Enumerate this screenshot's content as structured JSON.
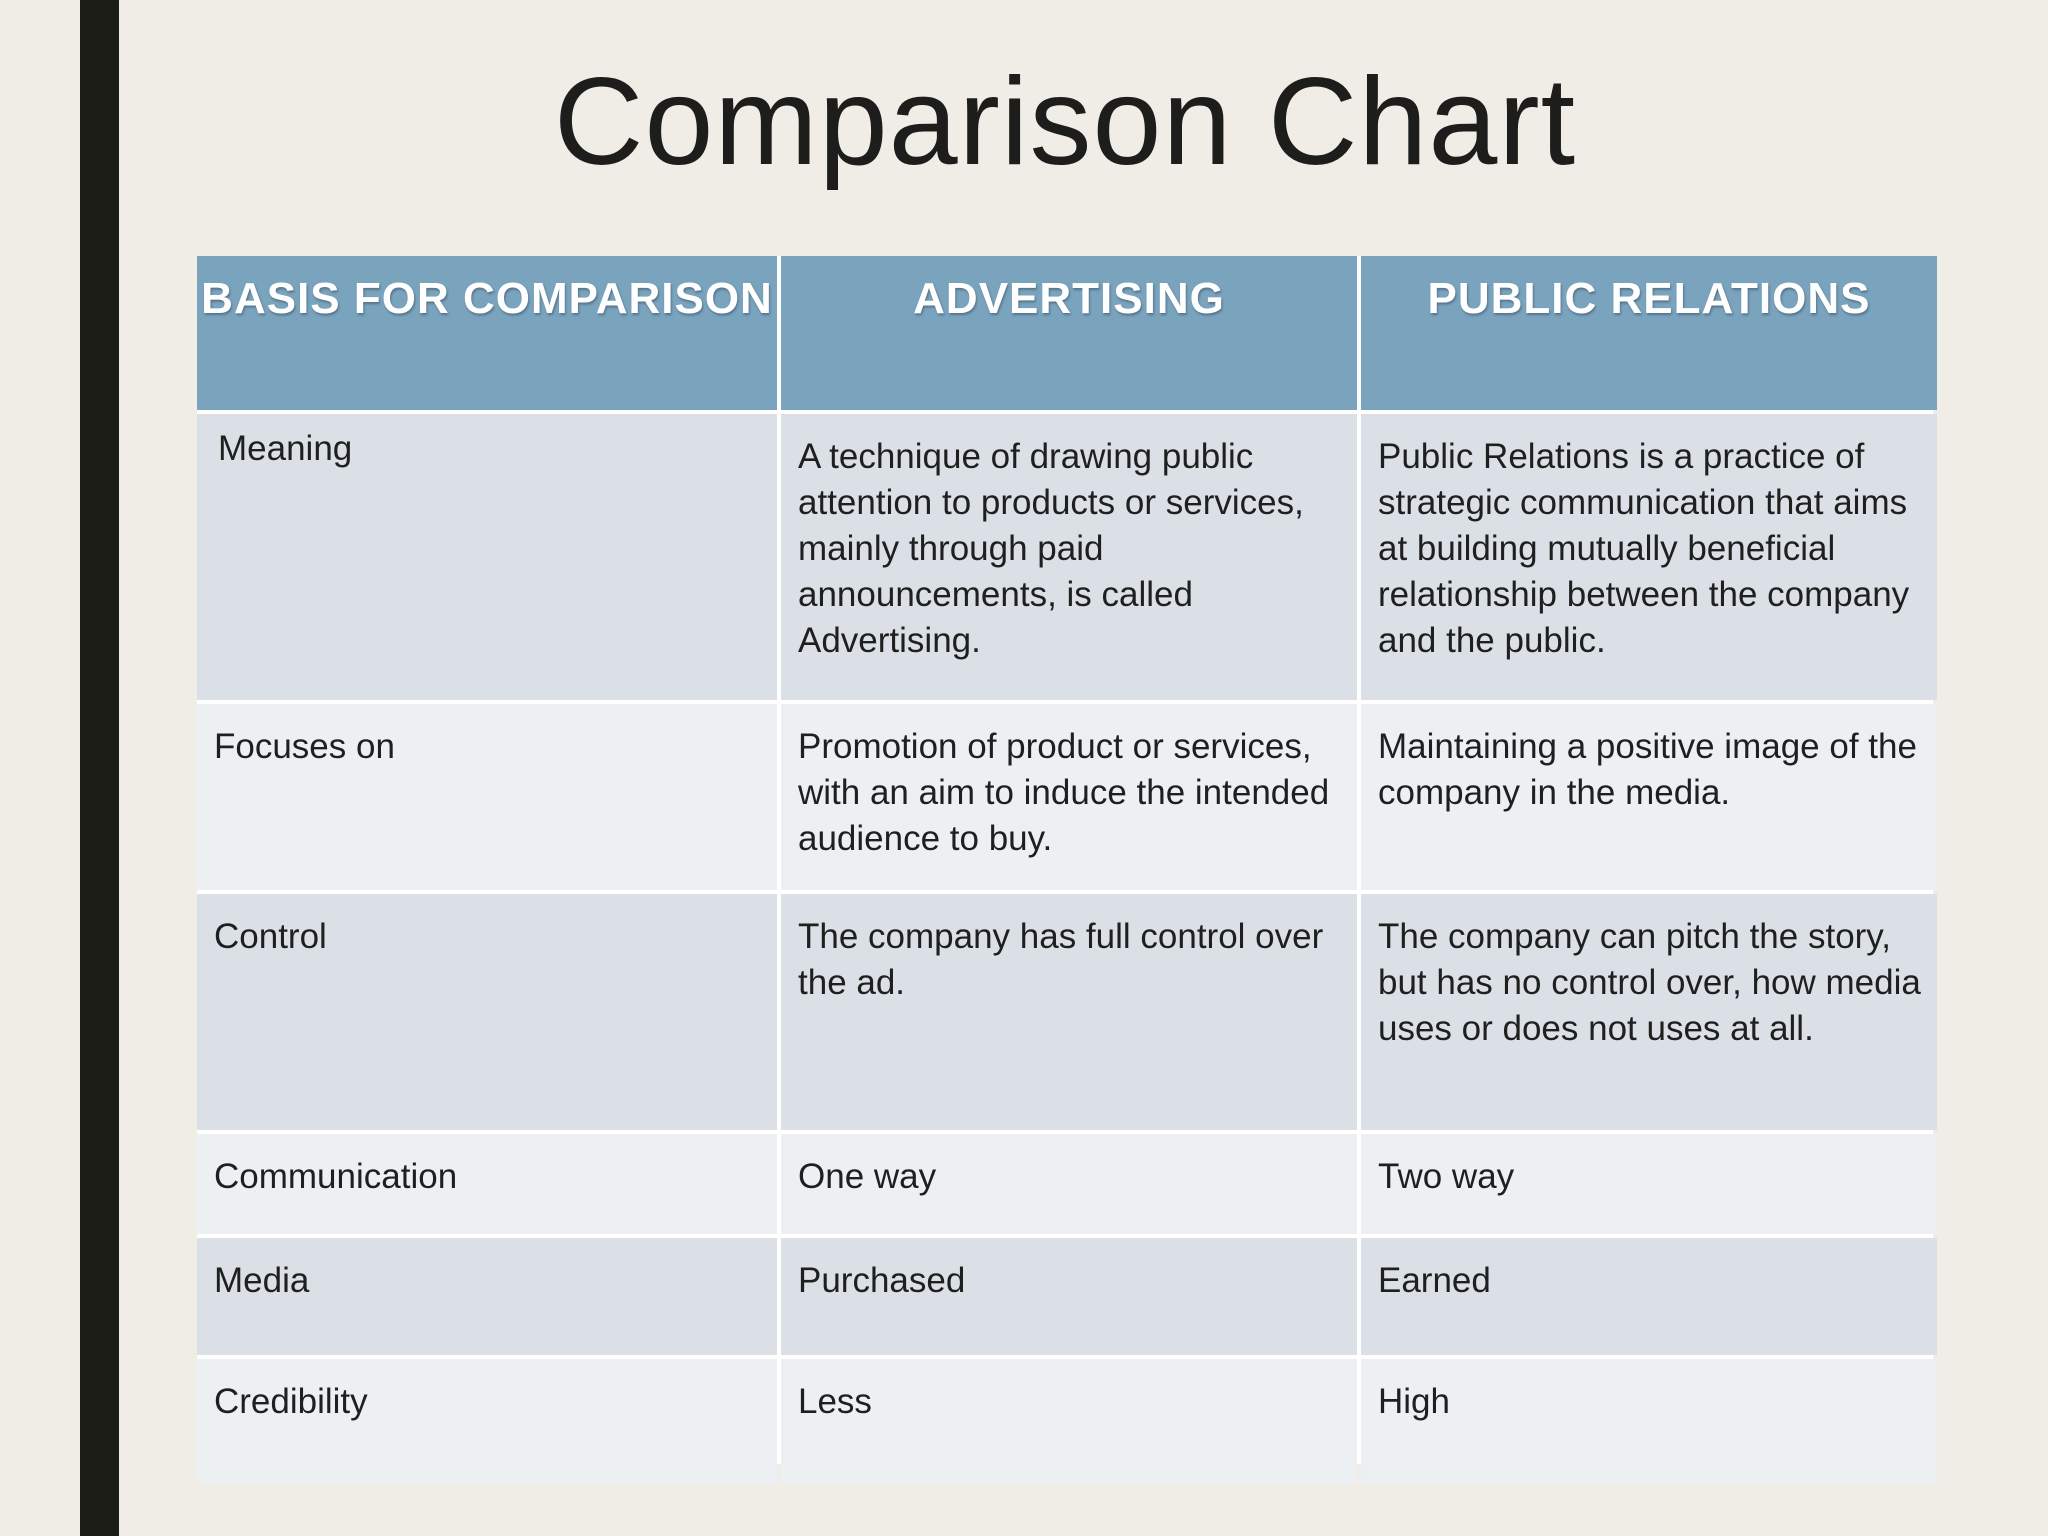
{
  "slide": {
    "title": "Comparison Chart"
  },
  "table": {
    "headers": [
      "BASIS FOR COMPARISON",
      "ADVERTISING",
      "PUBLIC RELATIONS"
    ],
    "rows": [
      [
        "Meaning",
        "A technique of drawing public attention to products or services, mainly through paid announcements, is called Advertising.",
        "Public Relations is a practice of strategic communication that aims at building mutually beneficial relationship between the company and the public."
      ],
      [
        "Focuses on",
        "Promotion of product or services, with an aim to induce the intended audience to buy.",
        "Maintaining a positive image of the company in the media."
      ],
      [
        "Control",
        "The company has full control over the ad.",
        "The company can pitch the story, but has no control over, how media uses or does not uses at all."
      ],
      [
        "Communication",
        "One way",
        "Two way"
      ],
      [
        "Media",
        "Purchased",
        "Earned"
      ],
      [
        "Credibility",
        "Less",
        "High"
      ]
    ]
  },
  "colors": {
    "background": "#f0ede6",
    "accent_bar": "#1b1c16",
    "header": "#7aa3bd",
    "row_dark": "#dae0e6",
    "row_light": "#edf0f3"
  }
}
